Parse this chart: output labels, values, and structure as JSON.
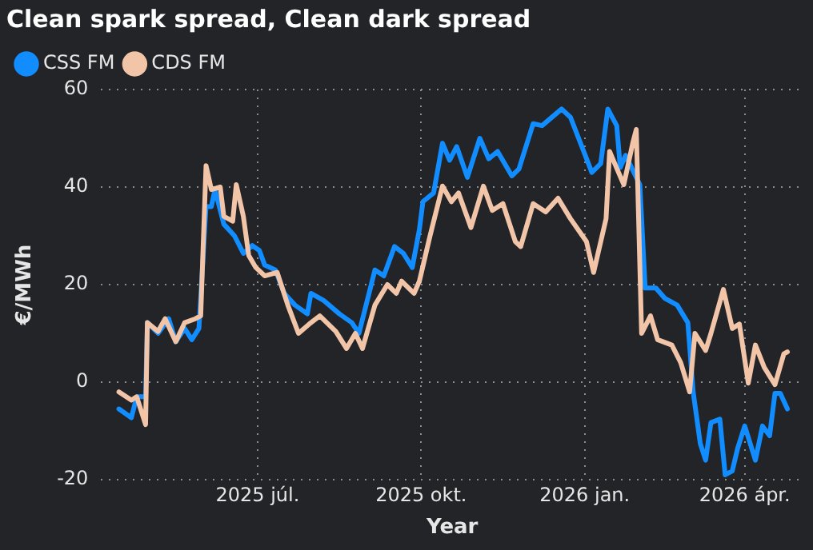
{
  "chart_data": {
    "type": "line",
    "title": "Clean spark spread, Clean dark spread",
    "xlabel": "Year",
    "ylabel": "€/MWh",
    "xlim": [
      "2025-04-04",
      "2026-05-04"
    ],
    "xticks": [
      {
        "value": "2025-07-01",
        "label": "2025 júl."
      },
      {
        "value": "2025-10-01",
        "label": "2025 okt."
      },
      {
        "value": "2026-01-01",
        "label": "2026 jan."
      },
      {
        "value": "2026-04-01",
        "label": "2026 ápr."
      }
    ],
    "ylim": [
      -20,
      60
    ],
    "yticks": [
      -20,
      0,
      20,
      40,
      60
    ],
    "grid": true,
    "legend": "top left",
    "marker": "none",
    "line_style": "solid",
    "series": [
      {
        "name": "CSS FM",
        "color": "#118dff",
        "x": [
          "2025-04-14",
          "2025-04-21",
          "2025-04-24",
          "2025-04-29",
          "2025-04-30",
          "2025-05-06",
          "2025-05-12",
          "2025-05-16",
          "2025-05-21",
          "2025-05-25",
          "2025-05-29",
          "2025-06-02",
          "2025-06-05",
          "2025-06-07",
          "2025-06-12",
          "2025-06-18",
          "2025-06-23",
          "2025-06-28",
          "2025-07-02",
          "2025-07-05",
          "2025-07-11",
          "2025-07-16",
          "2025-07-22",
          "2025-07-29",
          "2025-07-31",
          "2025-08-07",
          "2025-08-16",
          "2025-08-23",
          "2025-08-27",
          "2025-09-05",
          "2025-09-10",
          "2025-09-16",
          "2025-09-21",
          "2025-09-26",
          "2025-09-30",
          "2025-10-02",
          "2025-10-08",
          "2025-10-13",
          "2025-10-17",
          "2025-10-21",
          "2025-10-27",
          "2025-11-03",
          "2025-11-08",
          "2025-11-13",
          "2025-11-21",
          "2025-11-25",
          "2025-12-03",
          "2025-12-08",
          "2025-12-19",
          "2025-12-24",
          "2026-01-05",
          "2026-01-10",
          "2026-01-14",
          "2026-01-19",
          "2026-01-21",
          "2026-01-24",
          "2026-02-01",
          "2026-02-04",
          "2026-02-10",
          "2026-02-15",
          "2026-02-22",
          "2026-02-28",
          "2026-03-03",
          "2026-03-07",
          "2026-03-10",
          "2026-03-13",
          "2026-03-18",
          "2026-03-21",
          "2026-03-25",
          "2026-03-28",
          "2026-04-01",
          "2026-04-07",
          "2026-04-11",
          "2026-04-15",
          "2026-04-18",
          "2026-04-21",
          "2026-04-25"
        ],
        "values": [
          -5.5,
          -7.3,
          -3,
          -3,
          12.2,
          10,
          13,
          8.3,
          11,
          8.7,
          11,
          36,
          36,
          39.5,
          32.4,
          30,
          26.4,
          28,
          27,
          24,
          23,
          18.2,
          15.8,
          14,
          18.2,
          16.8,
          14,
          12.2,
          10,
          23,
          21.8,
          27.8,
          26.4,
          23.5,
          31.3,
          37,
          38.8,
          49,
          45.5,
          48.3,
          42,
          50,
          45.8,
          47.3,
          42.3,
          43.7,
          53,
          52.6,
          56,
          54.3,
          43,
          44.8,
          56,
          52.6,
          44,
          46.5,
          40.5,
          19.3,
          19.3,
          17.2,
          15.8,
          12.2,
          -2,
          -12.6,
          -16,
          -8.3,
          -7.6,
          -19,
          -18.2,
          -13.6,
          -9,
          -16,
          -9,
          -11,
          -2.3,
          -2.3,
          -5.5
        ]
      },
      {
        "name": "CDS FM",
        "color": "#f2c4a8",
        "x": [
          "2025-04-14",
          "2025-04-21",
          "2025-04-24",
          "2025-04-29",
          "2025-04-30",
          "2025-05-06",
          "2025-05-10",
          "2025-05-16",
          "2025-05-21",
          "2025-05-27",
          "2025-05-30",
          "2025-06-02",
          "2025-06-05",
          "2025-06-10",
          "2025-06-12",
          "2025-06-17",
          "2025-06-19",
          "2025-06-23",
          "2025-06-26",
          "2025-06-30",
          "2025-07-05",
          "2025-07-12",
          "2025-07-18",
          "2025-07-24",
          "2025-07-30",
          "2025-08-05",
          "2025-08-14",
          "2025-08-20",
          "2025-08-25",
          "2025-08-29",
          "2025-09-05",
          "2025-09-12",
          "2025-09-17",
          "2025-09-20",
          "2025-09-27",
          "2025-09-30",
          "2025-10-06",
          "2025-10-13",
          "2025-10-18",
          "2025-10-22",
          "2025-10-29",
          "2025-11-05",
          "2025-11-10",
          "2025-11-16",
          "2025-11-23",
          "2025-11-26",
          "2025-12-03",
          "2025-12-10",
          "2025-12-17",
          "2025-12-24",
          "2026-01-02",
          "2026-01-06",
          "2026-01-13",
          "2026-01-15",
          "2026-01-20",
          "2026-01-23",
          "2026-01-28",
          "2026-01-30",
          "2026-02-02",
          "2026-02-07",
          "2026-02-11",
          "2026-02-19",
          "2026-02-24",
          "2026-03-01",
          "2026-03-04",
          "2026-03-10",
          "2026-03-13",
          "2026-03-20",
          "2026-03-25",
          "2026-03-29",
          "2026-04-03",
          "2026-04-07",
          "2026-04-12",
          "2026-04-18",
          "2026-04-23",
          "2026-04-25"
        ],
        "values": [
          -2,
          -3.7,
          -3,
          -8.7,
          12.2,
          10.4,
          13,
          8.3,
          12.2,
          13,
          13.6,
          44.4,
          39.5,
          40,
          34,
          33,
          40.5,
          34,
          26,
          23.5,
          21.8,
          22.5,
          15.8,
          10,
          11.9,
          13.6,
          10.4,
          6.9,
          10,
          6.9,
          15.8,
          20,
          18.2,
          20.7,
          18.2,
          20.7,
          30,
          40.2,
          37,
          38.8,
          31.7,
          40.2,
          35.2,
          36.6,
          28.8,
          27.8,
          36.6,
          34.9,
          37.7,
          33.5,
          28.8,
          22.5,
          33.5,
          47.3,
          43,
          40.5,
          49,
          51.8,
          10,
          13.6,
          8.7,
          7.6,
          4,
          -2,
          10,
          6.5,
          10,
          19,
          11,
          11.9,
          -0.2,
          7.6,
          3,
          -0.5,
          5.8,
          6.2
        ]
      }
    ]
  }
}
